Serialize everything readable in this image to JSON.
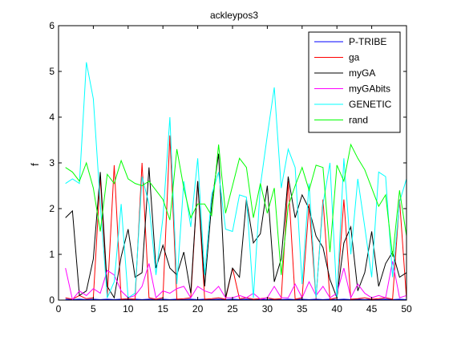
{
  "chart_data": {
    "type": "line",
    "title": "ackleypos3",
    "xlabel": "",
    "ylabel": "f",
    "xlim": [
      0,
      50
    ],
    "ylim": [
      0,
      6
    ],
    "xticks": [
      0,
      5,
      10,
      15,
      20,
      25,
      30,
      35,
      40,
      45,
      50
    ],
    "yticks": [
      0,
      1,
      2,
      3,
      4,
      5,
      6
    ],
    "grid": false,
    "legend_position": "top-right",
    "x": [
      1,
      2,
      3,
      4,
      5,
      6,
      7,
      8,
      9,
      10,
      11,
      12,
      13,
      14,
      15,
      16,
      17,
      18,
      19,
      20,
      21,
      22,
      23,
      24,
      25,
      26,
      27,
      28,
      29,
      30,
      31,
      32,
      33,
      34,
      35,
      36,
      37,
      38,
      39,
      40,
      41,
      42,
      43,
      44,
      45,
      46,
      47,
      48,
      49,
      50
    ],
    "series": [
      {
        "name": "P-TRIBE",
        "color": "#0000ff",
        "values": [
          0.02,
          0.01,
          0.02,
          0.01,
          0.02,
          0.01,
          0.02,
          0.01,
          0.02,
          0.01,
          0.02,
          0.01,
          0.02,
          0.01,
          0.02,
          0.01,
          0.02,
          0.01,
          0.02,
          0.01,
          0.02,
          0.01,
          0.02,
          0.01,
          0.02,
          0.01,
          0.02,
          0.01,
          0.02,
          0.01,
          0.02,
          0.01,
          0.02,
          0.01,
          0.02,
          0.01,
          0.02,
          0.01,
          0.02,
          0.01,
          0.02,
          0.01,
          0.02,
          0.01,
          0.02,
          0.01,
          0.02,
          0.01,
          0.02,
          0.01
        ]
      },
      {
        "name": "ga",
        "color": "#ff0000",
        "values": [
          0.05,
          0.02,
          0.1,
          0.03,
          0.05,
          2.7,
          0.05,
          2.95,
          0.02,
          0.03,
          0.02,
          3.0,
          0.05,
          0.02,
          0.05,
          3.6,
          0.02,
          0.03,
          0.05,
          2.6,
          0.02,
          0.03,
          0.05,
          0.02,
          0.7,
          0.03,
          0.05,
          0.02,
          0.03,
          0.05,
          0.02,
          0.03,
          2.6,
          0.02,
          0.05,
          2.1,
          0.03,
          2.2,
          0.02,
          0.05,
          2.2,
          0.02,
          0.03,
          0.05,
          0.02,
          0.03,
          0.05,
          0.02,
          2.2,
          0.02
        ]
      },
      {
        "name": "myGA",
        "color": "#000000",
        "values": [
          1.8,
          1.95,
          0.1,
          0.2,
          0.9,
          2.8,
          0.3,
          0.05,
          0.95,
          1.55,
          0.5,
          0.6,
          2.9,
          0.7,
          1.2,
          0.7,
          0.55,
          1.05,
          0.15,
          2.6,
          0.3,
          2.1,
          3.2,
          0.05,
          0.7,
          0.5,
          2.2,
          1.25,
          1.45,
          2.5,
          0.4,
          0.9,
          2.7,
          1.8,
          2.3,
          2.0,
          1.4,
          1.15,
          0.45,
          0.05,
          1.25,
          1.6,
          0.2,
          0.6,
          1.5,
          0.3,
          0.8,
          1.05,
          0.5,
          0.6
        ]
      },
      {
        "name": "myGAbits",
        "color": "#ff00ff",
        "values": [
          0.7,
          0.01,
          0.2,
          0.1,
          0.25,
          0.15,
          0.65,
          0.55,
          0.2,
          0.05,
          0.1,
          0.3,
          0.8,
          0.05,
          0.2,
          0.15,
          0.25,
          0.3,
          0.05,
          0.3,
          0.2,
          0.15,
          0.3,
          0.05,
          0.05,
          0.1,
          0.05,
          0.15,
          0.02,
          0.05,
          0.3,
          0.05,
          0.05,
          0.35,
          0.05,
          0.4,
          0.1,
          0.3,
          0.05,
          0.15,
          0.7,
          0.05,
          0.35,
          0.15,
          0.05,
          0.1,
          0.05,
          0.85,
          0.05,
          0.1
        ]
      },
      {
        "name": "GENETIC",
        "color": "#00ffff",
        "values": [
          2.55,
          2.65,
          2.55,
          5.2,
          4.4,
          2.1,
          0.05,
          0.4,
          2.1,
          0.05,
          0.15,
          2.7,
          2.1,
          0.55,
          1.8,
          4.0,
          0.35,
          2.6,
          1.6,
          3.1,
          0.55,
          2.3,
          2.8,
          1.55,
          1.5,
          2.3,
          2.25,
          0.05,
          2.5,
          3.6,
          4.65,
          2.45,
          3.3,
          2.9,
          0.35,
          2.55,
          0.05,
          2.1,
          3.0,
          0.05,
          3.1,
          1.0,
          2.65,
          1.6,
          0.5,
          2.8,
          2.7,
          0.5,
          2.15,
          2.65
        ]
      },
      {
        "name": "rand",
        "color": "#00ff00",
        "values": [
          2.9,
          2.8,
          2.6,
          3.0,
          2.45,
          1.5,
          2.75,
          2.55,
          3.05,
          2.65,
          2.55,
          2.5,
          2.6,
          2.4,
          2.2,
          1.75,
          3.3,
          2.45,
          1.8,
          2.1,
          2.1,
          1.85,
          3.4,
          1.9,
          2.5,
          3.1,
          2.9,
          1.8,
          2.55,
          1.9,
          2.45,
          0.55,
          2.05,
          2.5,
          2.9,
          2.4,
          2.95,
          2.9,
          1.05,
          2.95,
          2.6,
          3.4,
          3.1,
          2.85,
          2.45,
          2.05,
          2.3,
          0.95,
          2.4,
          1.4
        ]
      }
    ]
  }
}
